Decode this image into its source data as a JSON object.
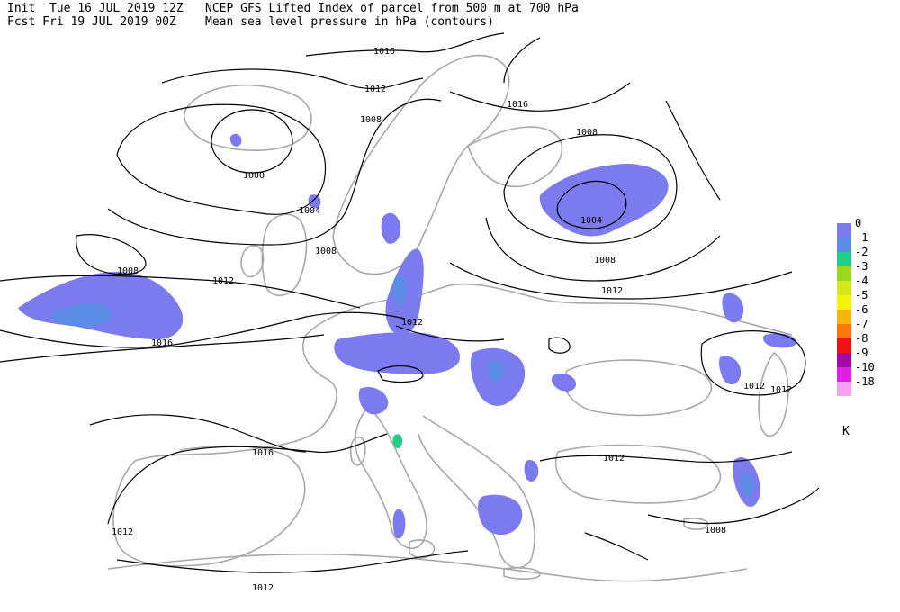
{
  "header": {
    "init_line": "Init  Tue 16 JUL 2019 12Z",
    "fcst_line": "Fcst Fri 19 JUL 2019 00Z",
    "title_line1": "NCEP GFS Lifted Index of parcel from 500 m at 700 hPa",
    "title_line2": "Mean sea level pressure in hPa (contours)"
  },
  "legend": {
    "unit": "K",
    "items": [
      {
        "label": "0",
        "color": "#7b7bef"
      },
      {
        "label": "-1",
        "color": "#5b8ce6"
      },
      {
        "label": "-2",
        "color": "#22cc8a"
      },
      {
        "label": "-3",
        "color": "#9bd71d"
      },
      {
        "label": "-4",
        "color": "#d6e81a"
      },
      {
        "label": "-5",
        "color": "#f7f40b"
      },
      {
        "label": "-6",
        "color": "#f7b60b"
      },
      {
        "label": "-7",
        "color": "#f77a0b"
      },
      {
        "label": "-8",
        "color": "#f01313"
      },
      {
        "label": "-9",
        "color": "#a10ba6"
      },
      {
        "label": "-10",
        "color": "#e020e0"
      },
      {
        "label": "-18",
        "color": "#f7a0f0"
      }
    ]
  },
  "isobar_labels": [
    {
      "text": "1016"
    },
    {
      "text": "1012"
    },
    {
      "text": "1008"
    },
    {
      "text": "1000"
    },
    {
      "text": "1004"
    },
    {
      "text": "1008"
    },
    {
      "text": "1008"
    },
    {
      "text": "1012"
    },
    {
      "text": "1016"
    },
    {
      "text": "1012"
    },
    {
      "text": "1016"
    },
    {
      "text": "1008"
    },
    {
      "text": "1004"
    },
    {
      "text": "1008"
    },
    {
      "text": "1012"
    },
    {
      "text": "1012"
    },
    {
      "text": "1012"
    },
    {
      "text": "1016"
    },
    {
      "text": "1012"
    },
    {
      "text": "1012"
    },
    {
      "text": "1008"
    },
    {
      "text": "1012"
    }
  ]
}
